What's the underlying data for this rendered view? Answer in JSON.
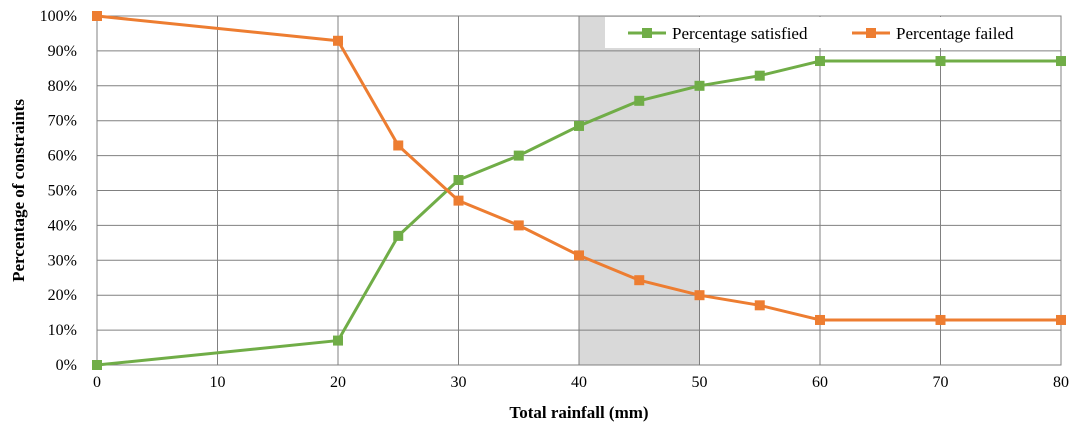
{
  "chart_data": {
    "type": "line",
    "xlabel": "Total rainfall (mm)",
    "ylabel": "Percentage of constraints",
    "xlim": [
      0,
      80
    ],
    "ylim": [
      0,
      100
    ],
    "x_ticks": [
      0,
      10,
      20,
      30,
      40,
      50,
      60,
      70,
      80
    ],
    "x_tick_labels": [
      "0",
      "10",
      "20",
      "30",
      "40",
      "50",
      "60",
      "70",
      "80"
    ],
    "y_ticks": [
      0,
      10,
      20,
      30,
      40,
      50,
      60,
      70,
      80,
      90,
      100
    ],
    "y_tick_labels": [
      "0%",
      "10%",
      "20%",
      "30%",
      "40%",
      "50%",
      "60%",
      "70%",
      "80%",
      "90%",
      "100%"
    ],
    "grid": true,
    "legend_position": "top-right",
    "shaded_region": {
      "x_start": 40,
      "x_end": 50,
      "color": "#d9d9d9"
    },
    "series": [
      {
        "name": "Percentage satisfied",
        "color": "#70ad47",
        "marker": "square",
        "x": [
          0,
          20,
          25,
          30,
          35,
          40,
          45,
          50,
          55,
          60,
          70,
          80
        ],
        "values": [
          0,
          7,
          37,
          53,
          60,
          68.5,
          75.7,
          80,
          82.9,
          87.1,
          87.1,
          87.1
        ]
      },
      {
        "name": "Percentage failed",
        "color": "#ed7d31",
        "marker": "square",
        "x": [
          0,
          20,
          25,
          30,
          35,
          40,
          45,
          50,
          55,
          60,
          70,
          80
        ],
        "values": [
          100,
          92.9,
          62.9,
          47.1,
          40,
          31.4,
          24.3,
          20,
          17.1,
          12.9,
          12.9,
          12.9
        ]
      }
    ]
  }
}
